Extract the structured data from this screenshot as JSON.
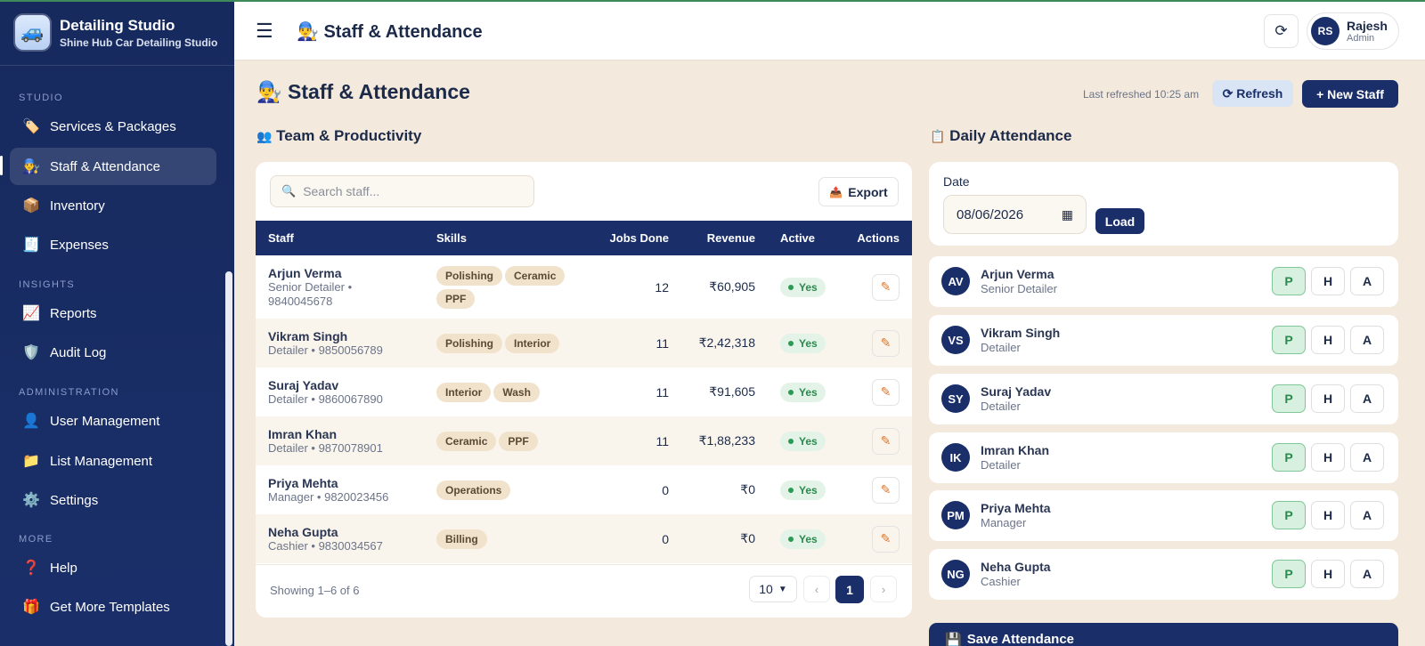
{
  "brand": {
    "logo_icon": "🚙",
    "title": "Detailing Studio",
    "subtitle": "Shine Hub Car Detailing Studio"
  },
  "sidebar": {
    "sections": {
      "studio": "STUDIO",
      "insights": "INSIGHTS",
      "administration": "ADMINISTRATION",
      "more": "MORE"
    },
    "items": [
      {
        "icon": "🏷️",
        "label": "Services & Packages"
      },
      {
        "icon": "👨‍🔧",
        "label": "Staff & Attendance"
      },
      {
        "icon": "📦",
        "label": "Inventory"
      },
      {
        "icon": "🧾",
        "label": "Expenses"
      },
      {
        "icon": "📈",
        "label": "Reports"
      },
      {
        "icon": "🛡️",
        "label": "Audit Log"
      },
      {
        "icon": "👤",
        "label": "User Management"
      },
      {
        "icon": "📁",
        "label": "List Management"
      },
      {
        "icon": "⚙️",
        "label": "Settings"
      },
      {
        "icon": "❓",
        "label": "Help"
      },
      {
        "icon": "🎁",
        "label": "Get More Templates"
      }
    ],
    "active_item": "Staff & Attendance"
  },
  "header": {
    "menu_icon": "☰",
    "page_icon": "👨‍🔧",
    "title": "Staff & Attendance",
    "refresh_icon": "⟳",
    "user": {
      "initials": "RS",
      "name": "Rajesh",
      "role": "Admin"
    }
  },
  "page": {
    "icon": "👨‍🔧",
    "title": "Staff & Attendance",
    "last_refreshed": "Last refreshed 10:25 am",
    "refresh_label": "⟳ Refresh",
    "new_staff_label": "+ New Staff"
  },
  "team": {
    "icon": "👥",
    "title": "Team & Productivity",
    "search_placeholder": "Search staff...",
    "export_icon": "📤",
    "export_label": "Export",
    "columns": [
      "Staff",
      "Skills",
      "Jobs Done",
      "Revenue",
      "Active",
      "Actions"
    ],
    "rows": [
      {
        "name": "Arjun Verma",
        "meta": "Senior Detailer • 9840045678",
        "skills": [
          "Polishing",
          "Ceramic",
          "PPF"
        ],
        "jobs": "12",
        "revenue": "₹60,905",
        "active": "Yes"
      },
      {
        "name": "Vikram Singh",
        "meta": "Detailer • 9850056789",
        "skills": [
          "Polishing",
          "Interior"
        ],
        "jobs": "11",
        "revenue": "₹2,42,318",
        "active": "Yes"
      },
      {
        "name": "Suraj Yadav",
        "meta": "Detailer • 9860067890",
        "skills": [
          "Interior",
          "Wash"
        ],
        "jobs": "11",
        "revenue": "₹91,605",
        "active": "Yes"
      },
      {
        "name": "Imran Khan",
        "meta": "Detailer • 9870078901",
        "skills": [
          "Ceramic",
          "PPF"
        ],
        "jobs": "11",
        "revenue": "₹1,88,233",
        "active": "Yes"
      },
      {
        "name": "Priya Mehta",
        "meta": "Manager • 9820023456",
        "skills": [
          "Operations"
        ],
        "jobs": "0",
        "revenue": "₹0",
        "active": "Yes"
      },
      {
        "name": "Neha Gupta",
        "meta": "Cashier • 9830034567",
        "skills": [
          "Billing"
        ],
        "jobs": "0",
        "revenue": "₹0",
        "active": "Yes"
      }
    ],
    "footer": {
      "showing": "Showing 1–6 of 6",
      "page_size": "10",
      "prev": "‹",
      "current_page": "1",
      "next": "›"
    }
  },
  "attendance": {
    "icon": "📋",
    "title": "Daily Attendance",
    "date_label": "Date",
    "date_value": "08/06/2026",
    "load_label": "Load",
    "buttons": [
      "P",
      "H",
      "A"
    ],
    "staff": [
      {
        "initials": "AV",
        "name": "Arjun Verma",
        "role": "Senior Detailer",
        "status": "P"
      },
      {
        "initials": "VS",
        "name": "Vikram Singh",
        "role": "Detailer",
        "status": "P"
      },
      {
        "initials": "SY",
        "name": "Suraj Yadav",
        "role": "Detailer",
        "status": "P"
      },
      {
        "initials": "IK",
        "name": "Imran Khan",
        "role": "Detailer",
        "status": "P"
      },
      {
        "initials": "PM",
        "name": "Priya Mehta",
        "role": "Manager",
        "status": "P"
      },
      {
        "initials": "NG",
        "name": "Neha Gupta",
        "role": "Cashier",
        "status": "P"
      }
    ],
    "save_icon": "💾",
    "save_label": "Save Attendance"
  },
  "colors": {
    "navy": "#1a2f6a",
    "background": "#f3e9dc",
    "present_green": "#2b8a4d",
    "edit_orange": "#e0762a"
  }
}
